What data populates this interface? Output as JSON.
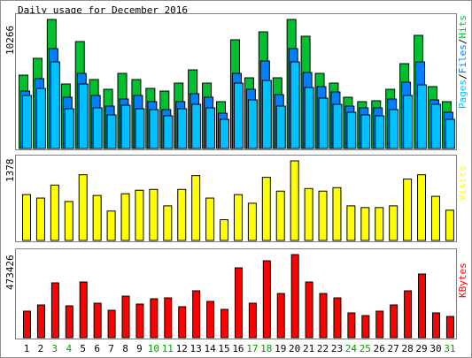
{
  "chart_data": [
    {
      "type": "bar",
      "title": "Daily usage for December 2016",
      "categories": [
        "1",
        "2",
        "3",
        "4",
        "5",
        "6",
        "7",
        "8",
        "9",
        "10",
        "11",
        "12",
        "13",
        "14",
        "15",
        "16",
        "17",
        "18",
        "19",
        "20",
        "21",
        "22",
        "23",
        "24",
        "25",
        "26",
        "27",
        "28",
        "29",
        "30",
        "31"
      ],
      "category_colors": [
        "#000000",
        "#000000",
        "#00a000",
        "#00a000",
        "#000000",
        "#000000",
        "#000000",
        "#000000",
        "#000000",
        "#00a000",
        "#00a000",
        "#000000",
        "#000000",
        "#000000",
        "#000000",
        "#000000",
        "#00a000",
        "#00a000",
        "#000000",
        "#000000",
        "#000000",
        "#000000",
        "#000000",
        "#00a000",
        "#00a000",
        "#000000",
        "#000000",
        "#000000",
        "#000000",
        "#000000",
        "#00a000"
      ],
      "legend_separator": "/",
      "series": [
        {
          "name": "Hits",
          "color": "#00c030",
          "values": [
            5836,
            7172,
            10266,
            5133,
            8508,
            5485,
            4711,
            5977,
            5485,
            4781,
            4570,
            5203,
            6258,
            5203,
            3727,
            8649,
            5625,
            9282,
            5625,
            10266,
            8930,
            5977,
            5203,
            4078,
            3727,
            3797,
            4711,
            6750,
            9000,
            4922,
            3727
          ]
        },
        {
          "name": "Files",
          "color": "#0080ff",
          "values": [
            4570,
            5555,
            7946,
            4078,
            5977,
            4219,
            3375,
            3938,
            4219,
            3727,
            3094,
            3727,
            4360,
            4078,
            2813,
            5977,
            4711,
            6961,
            4289,
            7946,
            6047,
            4922,
            4500,
            3375,
            3234,
            3234,
            3938,
            5274,
            6891,
            3867,
            2883
          ]
        },
        {
          "name": "Pages",
          "color": "#00c0ff",
          "values": [
            4219,
            4781,
            6891,
            3164,
            5133,
            3234,
            2672,
            3445,
            3164,
            3094,
            2602,
            3164,
            3516,
            3234,
            2320,
            5203,
            3867,
            5414,
            3375,
            6891,
            4852,
            4008,
            3516,
            2883,
            2672,
            2602,
            3094,
            4219,
            5063,
            3516,
            2320
          ]
        }
      ],
      "ylim": [
        0,
        10266
      ],
      "yticks": [
        10266
      ]
    },
    {
      "type": "bar",
      "series": [
        {
          "name": "Visits",
          "color": "#ffff00",
          "values": [
            794,
            734,
            959,
            674,
            1138,
            779,
            509,
            809,
            869,
            884,
            599,
            884,
            1123,
            734,
            359,
            794,
            644,
            1093,
            854,
            1378,
            899,
            854,
            914,
            599,
            569,
            569,
            599,
            1063,
            1138,
            764,
            524
          ]
        }
      ],
      "ylim": [
        0,
        1378
      ],
      "yticks": [
        1378
      ]
    },
    {
      "type": "bar",
      "series": [
        {
          "name": "KBytes",
          "color": "#ff0000",
          "values": [
            151093,
            186348,
            312260,
            181311,
            317296,
            196421,
            156130,
            236713,
            191384,
            221603,
            226639,
            176275,
            266932,
            206494,
            161166,
            397880,
            196421,
            438172,
            251822,
            473426,
            317296,
            251822,
            226639,
            141020,
            125911,
            151093,
            186348,
            266932,
            362623,
            141020,
            120875
          ]
        }
      ],
      "ylim": [
        0,
        473426
      ],
      "yticks": [
        473426
      ]
    }
  ]
}
